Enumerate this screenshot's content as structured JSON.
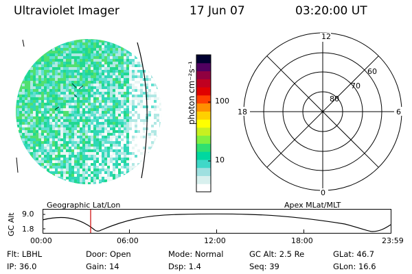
{
  "header": {
    "title": "Ultraviolet Imager",
    "date": "17 Jun 07",
    "time": "03:20:00 UT"
  },
  "colorbar": {
    "unit_label": "photon cm⁻²s⁻¹",
    "ticks": [
      "100",
      "10"
    ],
    "colors": [
      "#ffffff",
      "#d8f0ee",
      "#9fe0e0",
      "#40d8c8",
      "#00d8a0",
      "#30e070",
      "#80f040",
      "#c8f020",
      "#ffff00",
      "#ffd000",
      "#ff9000",
      "#ff4000",
      "#e00000",
      "#c00020",
      "#900040",
      "#500060",
      "#000030"
    ]
  },
  "polar_plot": {
    "lat_labels": [
      "80",
      "70",
      "60"
    ],
    "mlt_labels": {
      "top": "12",
      "left": "18",
      "right": "6",
      "bottom": "0"
    }
  },
  "image_labels": {
    "left": "Geographic Lat/Lon",
    "right": "Apex  MLat/MLT"
  },
  "timeline": {
    "ylabel": "GC Alt",
    "yticks": [
      "9.0",
      "1.8"
    ],
    "xticks": [
      "00:00",
      "06:00",
      "12:00",
      "18:00",
      "23:59"
    ],
    "marker_color": "#cc0000"
  },
  "info": {
    "row1": {
      "flt": "Flt: LBHL",
      "door": "Door: Open",
      "mode": "Mode: Normal",
      "gc_alt": "GC Alt: 2.5 Re",
      "glat": "GLat:  46.7"
    },
    "row2": {
      "ip": "IP: 36.0",
      "gain": "Gain: 14",
      "dsp": "Dsp:    1.4",
      "seq": "Seq: 39",
      "glon": "GLon:  16.6"
    }
  }
}
